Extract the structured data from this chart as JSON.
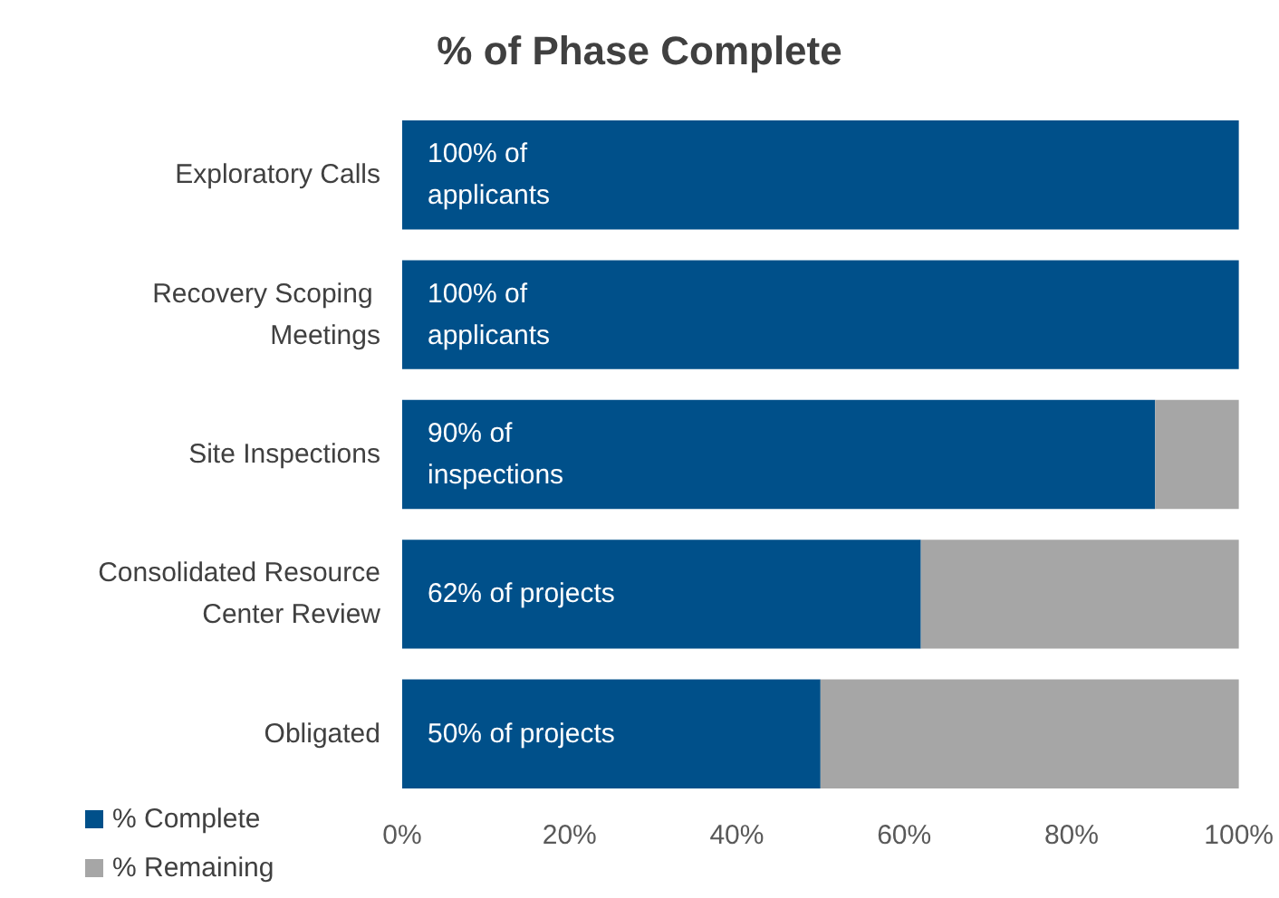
{
  "chart_data": {
    "type": "bar",
    "orientation": "horizontal",
    "stacked": true,
    "title": "% of Phase Complete",
    "categories": [
      "Exploratory Calls",
      "Recovery Scoping Meetings",
      "Site Inspections",
      "Consolidated Resource Center Review",
      "Obligated"
    ],
    "series": [
      {
        "name": "% Complete",
        "color": "#00508a",
        "values": [
          100,
          100,
          90,
          62,
          50
        ],
        "value_labels": [
          "100% of applicants",
          "100% of applicants",
          "90% of inspections",
          "62% of projects",
          "50% of projects"
        ]
      },
      {
        "name": "% Remaining",
        "color": "#a6a6a6",
        "values": [
          0,
          0,
          10,
          38,
          50
        ]
      }
    ],
    "xlim": [
      0,
      100
    ],
    "xticks": [
      {
        "value": 0,
        "label": "0%"
      },
      {
        "value": 20,
        "label": "20%"
      },
      {
        "value": 40,
        "label": "40%"
      },
      {
        "value": 60,
        "label": "60%"
      },
      {
        "value": 80,
        "label": "80%"
      },
      {
        "value": 100,
        "label": "100%"
      }
    ],
    "grid": false,
    "legend": "bottom left"
  }
}
